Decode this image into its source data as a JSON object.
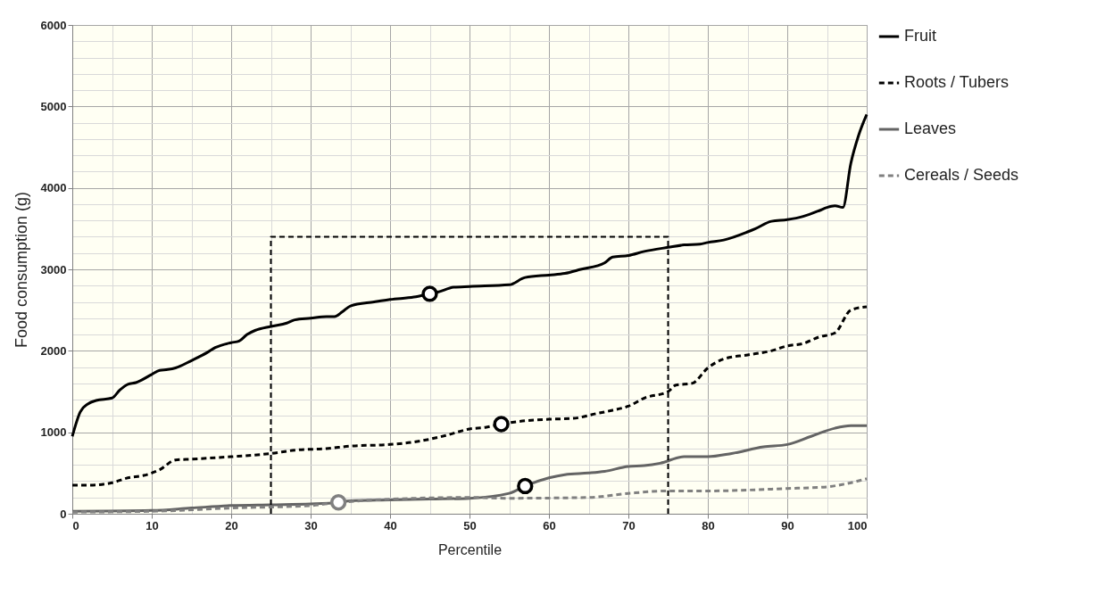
{
  "chart_data": {
    "type": "line",
    "xlabel": "Percentile",
    "ylabel": "Food consumption (g)",
    "xlim": [
      0,
      100
    ],
    "ylim": [
      0,
      6000
    ],
    "xticks": [
      0,
      {
        "value": 5,
        "label": null
      },
      10,
      {
        "value": 15,
        "label": null
      },
      20,
      {
        "value": 25,
        "label": null
      },
      30,
      {
        "value": 35,
        "label": null
      },
      40,
      {
        "value": 45,
        "label": null
      },
      50,
      {
        "value": 55,
        "label": null
      },
      60,
      {
        "value": 65,
        "label": null
      },
      70,
      {
        "value": 75,
        "label": null
      },
      80,
      {
        "value": 85,
        "label": null
      },
      90,
      {
        "value": 95,
        "label": null
      },
      100
    ],
    "yticks": [
      0,
      {
        "value": 200,
        "label": null
      },
      {
        "value": 400,
        "label": null
      },
      {
        "value": 600,
        "label": null
      },
      {
        "value": 800,
        "label": null
      },
      1000,
      {
        "value": 1200,
        "label": null
      },
      {
        "value": 1400,
        "label": null
      },
      {
        "value": 1600,
        "label": null
      },
      {
        "value": 1800,
        "label": null
      },
      2000,
      {
        "value": 2200,
        "label": null
      },
      {
        "value": 2400,
        "label": null
      },
      {
        "value": 2600,
        "label": null
      },
      {
        "value": 2800,
        "label": null
      },
      3000,
      {
        "value": 3200,
        "label": null
      },
      {
        "value": 3400,
        "label": null
      },
      {
        "value": 3600,
        "label": null
      },
      {
        "value": 3800,
        "label": null
      },
      4000,
      {
        "value": 4200,
        "label": null
      },
      {
        "value": 4400,
        "label": null
      },
      {
        "value": 4600,
        "label": null
      },
      {
        "value": 4800,
        "label": null
      },
      5000,
      {
        "value": 5200,
        "label": null
      },
      {
        "value": 5400,
        "label": null
      },
      {
        "value": 5600,
        "label": null
      },
      {
        "value": 5800,
        "label": null
      },
      6000
    ],
    "grid": true,
    "legend": "right",
    "series": [
      {
        "name": "Fruit",
        "color": "#000000",
        "line_style": "solid",
        "x": [
          0,
          1,
          2,
          3,
          5,
          6,
          7,
          8,
          10,
          11,
          12,
          13,
          15,
          17,
          18,
          20,
          21,
          22,
          23,
          25,
          27,
          28,
          30,
          32,
          33,
          34,
          35,
          38,
          40,
          43,
          45,
          46,
          48,
          50,
          55,
          57,
          60,
          62,
          64,
          67,
          68,
          70,
          72,
          75,
          77,
          79,
          80,
          82,
          85,
          86,
          88,
          90,
          92,
          94,
          95,
          96,
          97,
          98,
          99,
          100
        ],
        "values": [
          950,
          1250,
          1350,
          1390,
          1420,
          1520,
          1590,
          1610,
          1710,
          1760,
          1770,
          1790,
          1880,
          1980,
          2040,
          2100,
          2120,
          2200,
          2250,
          2300,
          2340,
          2380,
          2400,
          2420,
          2420,
          2480,
          2550,
          2600,
          2630,
          2660,
          2700,
          2720,
          2780,
          2790,
          2810,
          2900,
          2930,
          2950,
          3000,
          3080,
          3150,
          3170,
          3220,
          3270,
          3300,
          3310,
          3330,
          3360,
          3460,
          3500,
          3590,
          3610,
          3650,
          3720,
          3760,
          3780,
          3760,
          4300,
          4650,
          4900
        ]
      },
      {
        "name": "Roots / Tubers",
        "color": "#000000",
        "line_style": "dashed",
        "x": [
          0,
          2,
          5,
          7,
          9,
          11,
          13,
          15,
          20,
          25,
          28,
          32,
          35,
          40,
          43,
          47,
          50,
          52,
          54,
          56,
          60,
          63,
          66,
          68,
          70,
          72,
          75,
          76,
          78,
          80,
          82,
          85,
          88,
          90,
          92,
          94,
          96,
          98,
          100
        ],
        "values": [
          350,
          350,
          380,
          440,
          470,
          540,
          660,
          670,
          700,
          740,
          780,
          800,
          830,
          850,
          880,
          960,
          1040,
          1060,
          1100,
          1130,
          1160,
          1170,
          1230,
          1270,
          1320,
          1420,
          1500,
          1580,
          1600,
          1790,
          1900,
          1950,
          2000,
          2060,
          2090,
          2170,
          2220,
          2500,
          2540
        ]
      },
      {
        "name": "Leaves",
        "color": "#646464",
        "line_style": "solid",
        "x": [
          0,
          10,
          15,
          20,
          25,
          30,
          33.5,
          35,
          40,
          45,
          50,
          55,
          57,
          60,
          62,
          65,
          67,
          70,
          72,
          74,
          77,
          80,
          83,
          87,
          90,
          93,
          96,
          98,
          100
        ],
        "values": [
          30,
          40,
          70,
          100,
          110,
          120,
          140,
          160,
          170,
          180,
          190,
          250,
          340,
          440,
          480,
          500,
          520,
          580,
          590,
          620,
          700,
          700,
          740,
          820,
          850,
          950,
          1050,
          1080,
          1080
        ]
      },
      {
        "name": "Cereals / Seeds",
        "color": "#808080",
        "line_style": "dashed",
        "x": [
          0,
          10,
          20,
          30,
          33.5,
          50,
          55,
          65,
          70,
          75,
          80,
          90,
          95,
          97,
          100
        ],
        "values": [
          20,
          30,
          70,
          100,
          140,
          200,
          190,
          200,
          250,
          280,
          280,
          310,
          330,
          360,
          430
        ]
      },
      {
        "type": "line",
        "color": "#000000",
        "line_style": "dashed",
        "x": [
          25,
          25,
          75,
          75
        ],
        "values": [
          0,
          3400,
          3400,
          0
        ]
      },
      {
        "type": "scatter",
        "color": "#000000",
        "marker": "circle",
        "x": [
          45,
          54,
          57
        ],
        "values": [
          2700,
          1100,
          340
        ]
      },
      {
        "type": "scatter",
        "color": "#808080",
        "marker": "circle",
        "x": [
          33.5
        ],
        "values": [
          140
        ]
      }
    ]
  }
}
